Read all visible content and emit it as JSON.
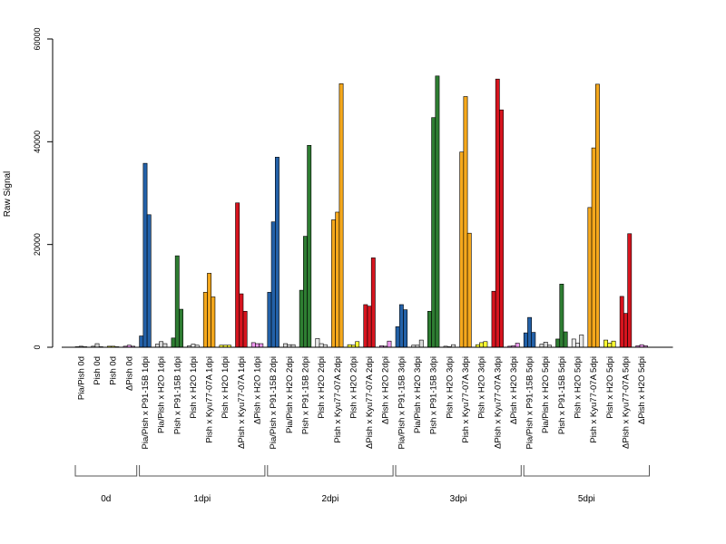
{
  "chart_data": {
    "type": "bar",
    "title": "",
    "xlabel": "",
    "ylabel": "Raw Signal",
    "ylim": [
      0,
      60000
    ],
    "yticks": [
      0,
      20000,
      40000,
      60000
    ],
    "ytick_labels": [
      "0",
      "20000",
      "40000",
      "60000"
    ],
    "grid": false,
    "legend": "none",
    "bars_per_category": 3,
    "categories": [
      {
        "label": "Pia/Pish 0d",
        "color": "#8f8f8f",
        "values": [
          100,
          200,
          100
        ]
      },
      {
        "label": "Pish 0d",
        "color": "#d8d8d8",
        "values": [
          200,
          700,
          100
        ]
      },
      {
        "label": "Pish 0d",
        "color": "#ffff33",
        "values": [
          200,
          200,
          100
        ]
      },
      {
        "label": "ΔPish 0d",
        "color": "#ee99ee",
        "values": [
          200,
          400,
          200
        ]
      },
      {
        "label": "Pia/Pish x P91-15B 1dpi",
        "color": "#2361a8",
        "values": [
          2200,
          35800,
          25800
        ]
      },
      {
        "label": "Pia/Pish x H2O 1dpi",
        "color": "#d8d8d8",
        "values": [
          600,
          1100,
          700
        ]
      },
      {
        "label": "Pish x P91-15B 1dpi",
        "color": "#2e7d32",
        "values": [
          1800,
          17800,
          7400
        ]
      },
      {
        "label": "Pish x H2O 1dpi",
        "color": "#e8e8e8",
        "values": [
          300,
          600,
          400
        ]
      },
      {
        "label": "Pish x Kyu77-07A 1dpi",
        "color": "#f5a81c",
        "values": [
          10700,
          14400,
          9800
        ]
      },
      {
        "label": "Pish x H2O 1dpi",
        "color": "#ffff33",
        "values": [
          400,
          400,
          400
        ]
      },
      {
        "label": "ΔPish x Kyu77-07A 1dpi",
        "color": "#d7141e",
        "values": [
          28100,
          10400,
          7000
        ]
      },
      {
        "label": "ΔPish x H2O 1dpi",
        "color": "#ee99ee",
        "values": [
          900,
          700,
          700
        ]
      },
      {
        "label": "Pia/Pish x P91-15B 2dpi",
        "color": "#2361a8",
        "values": [
          10700,
          24400,
          37000
        ]
      },
      {
        "label": "Pia/Pish x H2O 2dpi",
        "color": "#d8d8d8",
        "values": [
          700,
          500,
          500
        ]
      },
      {
        "label": "Pish x P91-15B 2dpi",
        "color": "#2e7d32",
        "values": [
          11100,
          21600,
          39300
        ]
      },
      {
        "label": "Pish x H2O 2dpi",
        "color": "#e8e8e8",
        "values": [
          1700,
          700,
          500
        ]
      },
      {
        "label": "Pish x Kyu77-07A 2dpi",
        "color": "#f5a81c",
        "values": [
          24800,
          26300,
          51300
        ]
      },
      {
        "label": "Pish x H2O 2dpi",
        "color": "#ffff33",
        "values": [
          500,
          400,
          1100
        ]
      },
      {
        "label": "ΔPish x Kyu77-07A 2dpi",
        "color": "#d7141e",
        "values": [
          8300,
          8000,
          17400
        ]
      },
      {
        "label": "ΔPish x H2O 2dpi",
        "color": "#ee99ee",
        "values": [
          300,
          200,
          1200
        ]
      },
      {
        "label": "Pia/Pish x P91-15B 3dpi",
        "color": "#2361a8",
        "values": [
          4000,
          8300,
          7300
        ]
      },
      {
        "label": "Pia/Pish x H2O 3dpi",
        "color": "#d8d8d8",
        "values": [
          400,
          400,
          1400
        ]
      },
      {
        "label": "Pish x P91-15B 3dpi",
        "color": "#2e7d32",
        "values": [
          7000,
          44700,
          52800
        ]
      },
      {
        "label": "Pish x H2O 3dpi",
        "color": "#e8e8e8",
        "values": [
          200,
          100,
          500
        ]
      },
      {
        "label": "Pish x Kyu77-07A 3dpi",
        "color": "#f5a81c",
        "values": [
          38000,
          48800,
          22200
        ]
      },
      {
        "label": "Pish x H2O 3dpi",
        "color": "#ffff33",
        "values": [
          500,
          900,
          1100
        ]
      },
      {
        "label": "ΔPish x Kyu77-07A 3dpi",
        "color": "#d7141e",
        "values": [
          10900,
          52200,
          46200
        ]
      },
      {
        "label": "ΔPish x H2O 3dpi",
        "color": "#ee99ee",
        "values": [
          200,
          300,
          800
        ]
      },
      {
        "label": "Pia/Pish x P91-15B 5dpi",
        "color": "#2361a8",
        "values": [
          2800,
          5800,
          2900
        ]
      },
      {
        "label": "Pia/Pish x H2O 5dpi",
        "color": "#d8d8d8",
        "values": [
          600,
          1000,
          400
        ]
      },
      {
        "label": "Pish x P91-15B 5dpi",
        "color": "#2e7d32",
        "values": [
          1600,
          12300,
          3000
        ]
      },
      {
        "label": "Pish x H2O 5dpi",
        "color": "#e8e8e8",
        "values": [
          1600,
          800,
          2400
        ]
      },
      {
        "label": "Pish x Kyu77-07A 5dpi",
        "color": "#f5a81c",
        "values": [
          27200,
          38800,
          51200
        ]
      },
      {
        "label": "Pish x H2O 5dpi",
        "color": "#ffff33",
        "values": [
          1400,
          800,
          1200
        ]
      },
      {
        "label": "ΔPish x Kyu77-07A 5dpi",
        "color": "#d7141e",
        "values": [
          9900,
          6600,
          22100
        ]
      },
      {
        "label": "ΔPish x H2O 5dpi",
        "color": "#ee99ee",
        "values": [
          300,
          500,
          300
        ]
      }
    ],
    "groups": [
      {
        "label": "0d",
        "first": 0,
        "last": 3
      },
      {
        "label": "1dpi",
        "first": 4,
        "last": 11
      },
      {
        "label": "2dpi",
        "first": 12,
        "last": 19
      },
      {
        "label": "3dpi",
        "first": 20,
        "last": 27
      },
      {
        "label": "5dpi",
        "first": 28,
        "last": 35
      }
    ]
  }
}
